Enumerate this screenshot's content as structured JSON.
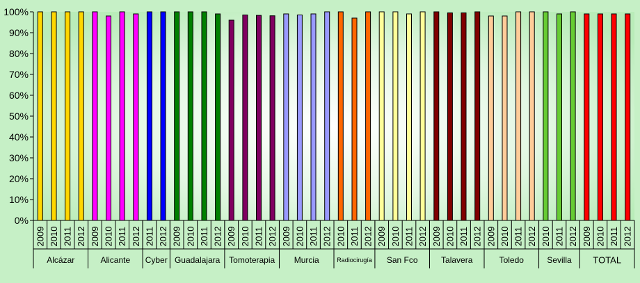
{
  "chart_data": {
    "type": "bar",
    "title": "",
    "xlabel": "",
    "ylabel": "",
    "ylim": [
      0,
      1
    ],
    "y_tick_labels": [
      "0%",
      "10%",
      "20%",
      "30%",
      "40%",
      "50%",
      "60%",
      "70%",
      "80%",
      "90%",
      "100%"
    ],
    "grid": false,
    "legend": "none",
    "background": "#c6f0c6",
    "plot_background": "radial-gradient white center to light green",
    "groups": [
      {
        "name": "Alcázar",
        "color": "#ffd700",
        "bars": [
          {
            "year": "2009",
            "value": 1.0
          },
          {
            "year": "2010",
            "value": 1.0
          },
          {
            "year": "2011",
            "value": 1.0
          },
          {
            "year": "2012",
            "value": 1.0
          }
        ]
      },
      {
        "name": "Alicante",
        "color": "#ff00ff",
        "bars": [
          {
            "year": "2009",
            "value": 1.0
          },
          {
            "year": "2010",
            "value": 0.98
          },
          {
            "year": "2011",
            "value": 1.0
          },
          {
            "year": "2012",
            "value": 0.99
          }
        ]
      },
      {
        "name": "Cyber",
        "color": "#0000ff",
        "bars": [
          {
            "year": "2011",
            "value": 1.0
          },
          {
            "year": "2012",
            "value": 1.0
          }
        ]
      },
      {
        "name": "Guadalajara",
        "color": "#008000",
        "bars": [
          {
            "year": "2009",
            "value": 1.0
          },
          {
            "year": "2010",
            "value": 1.0
          },
          {
            "year": "2011",
            "value": 1.0
          },
          {
            "year": "2012",
            "value": 0.99
          }
        ]
      },
      {
        "name": "Tomoterapia",
        "color": "#800060",
        "bars": [
          {
            "year": "2009",
            "value": 0.96
          },
          {
            "year": "2010",
            "value": 0.985
          },
          {
            "year": "2011",
            "value": 0.983
          },
          {
            "year": "2012",
            "value": 0.981
          }
        ]
      },
      {
        "name": "Murcia",
        "color": "#9999ff",
        "bars": [
          {
            "year": "2009",
            "value": 0.99
          },
          {
            "year": "2010",
            "value": 0.985
          },
          {
            "year": "2011",
            "value": 0.99
          },
          {
            "year": "2012",
            "value": 1.0
          }
        ]
      },
      {
        "name": "Radiocirugía",
        "color": "#ff6600",
        "bars": [
          {
            "year": "2010",
            "value": 1.0
          },
          {
            "year": "2011",
            "value": 0.97
          },
          {
            "year": "2012",
            "value": 1.0
          }
        ]
      },
      {
        "name": "San Fco",
        "color": "#ffff99",
        "bars": [
          {
            "year": "2009",
            "value": 1.0
          },
          {
            "year": "2010",
            "value": 1.0
          },
          {
            "year": "2011",
            "value": 0.99
          },
          {
            "year": "2012",
            "value": 1.0
          }
        ]
      },
      {
        "name": "Talavera",
        "color": "#800000",
        "bars": [
          {
            "year": "2009",
            "value": 1.0
          },
          {
            "year": "2010",
            "value": 0.995
          },
          {
            "year": "2011",
            "value": 0.995
          },
          {
            "year": "2012",
            "value": 1.0
          }
        ]
      },
      {
        "name": "Toledo",
        "color": "#ffcc99",
        "bars": [
          {
            "year": "2009",
            "value": 0.98
          },
          {
            "year": "2010",
            "value": 0.98
          },
          {
            "year": "2011",
            "value": 1.0
          },
          {
            "year": "2012",
            "value": 1.0
          }
        ]
      },
      {
        "name": "Sevilla",
        "color": "#66cc33",
        "bars": [
          {
            "year": "2010",
            "value": 1.0
          },
          {
            "year": "2011",
            "value": 0.99
          },
          {
            "year": "2012",
            "value": 1.0
          }
        ]
      },
      {
        "name": "TOTAL",
        "color": "#ff0000",
        "bars": [
          {
            "year": "2009",
            "value": 0.99
          },
          {
            "year": "2010",
            "value": 0.99
          },
          {
            "year": "2011",
            "value": 0.99
          },
          {
            "year": "2012",
            "value": 0.99
          }
        ]
      }
    ]
  }
}
